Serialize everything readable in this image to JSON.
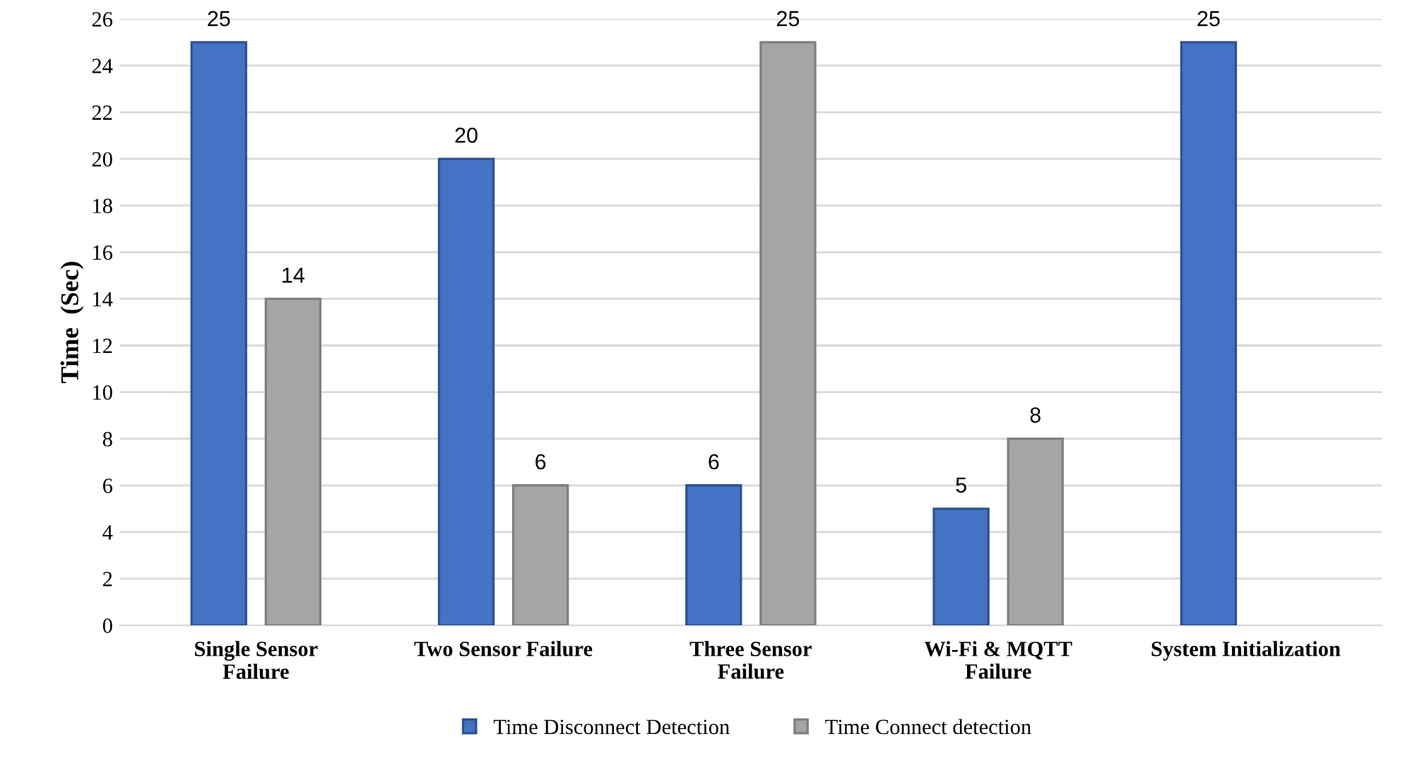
{
  "chart_data": {
    "type": "bar",
    "ylabel": "Time  (Sec)",
    "categories": [
      "Single Sensor\nFailure",
      "Two Sensor Failure",
      "Three Sensor\nFailure",
      "Wi-Fi & MQTT\nFailure",
      "System Initialization"
    ],
    "series": [
      {
        "name": "Time Disconnect Detection",
        "color": "#4472c4",
        "values": [
          25,
          20,
          6,
          5,
          25
        ]
      },
      {
        "name": "Time Connect detection",
        "color": "#a5a5a5",
        "values": [
          14,
          6,
          25,
          8,
          null
        ]
      }
    ],
    "ylim": [
      0,
      26
    ],
    "yticks": [
      0,
      2,
      4,
      6,
      8,
      10,
      12,
      14,
      16,
      18,
      20,
      22,
      24,
      26
    ],
    "grid": "y",
    "legend": "bottom",
    "data_labels": true
  }
}
